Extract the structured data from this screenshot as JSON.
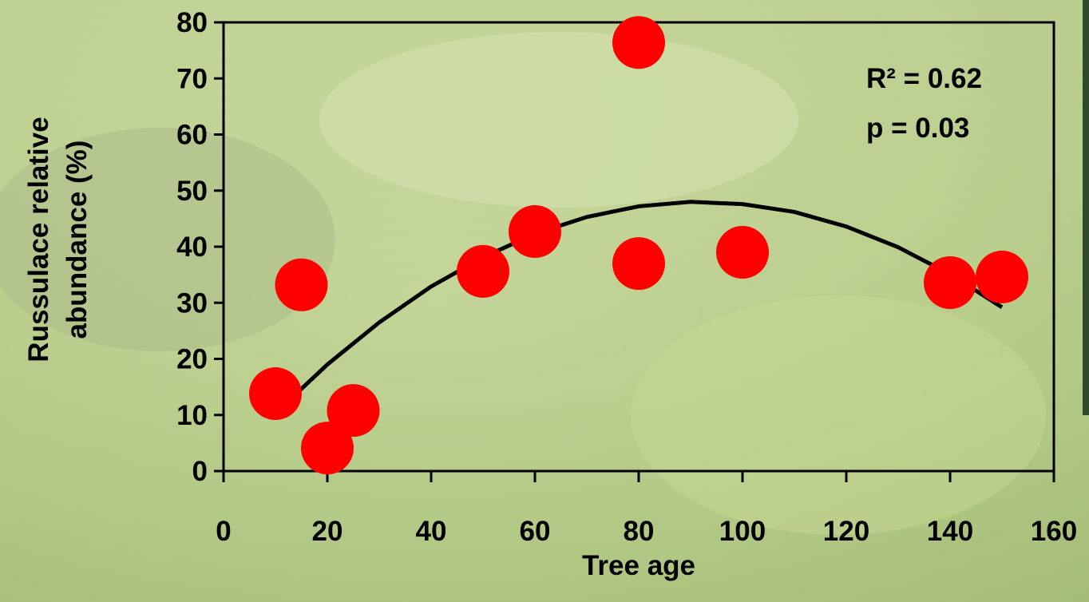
{
  "chart_data": {
    "type": "scatter",
    "xlabel": "Tree age",
    "ylabel": [
      "Russulace relative",
      "abundance (%)"
    ],
    "annotations": [
      "R² = 0.62",
      "p = 0.03"
    ],
    "xlim": [
      0,
      160
    ],
    "xticks": [
      0,
      20,
      40,
      60,
      80,
      100,
      120,
      140,
      160
    ],
    "ylim": [
      0,
      80
    ],
    "yticks": [
      0,
      10,
      20,
      30,
      40,
      50,
      60,
      70,
      80
    ],
    "series": [
      {
        "color": "#ff0000",
        "x": [
          10,
          15,
          20,
          25,
          50,
          60,
          80,
          80,
          100,
          140,
          150
        ],
        "values": [
          13.8,
          33.2,
          4.1,
          10.8,
          35.6,
          42.7,
          76.4,
          37,
          39,
          33.6,
          34.6
        ]
      }
    ],
    "fit": {
      "color": "#000000",
      "x": [
        10,
        20,
        30,
        40,
        50,
        60,
        70,
        80,
        90,
        100,
        110,
        120,
        130,
        140,
        150
      ],
      "values": [
        10.3,
        19.0,
        26.5,
        32.9,
        38.1,
        42.3,
        45.3,
        47.2,
        48.0,
        47.6,
        46.2,
        43.6,
        39.9,
        35.1,
        29.2
      ]
    }
  }
}
